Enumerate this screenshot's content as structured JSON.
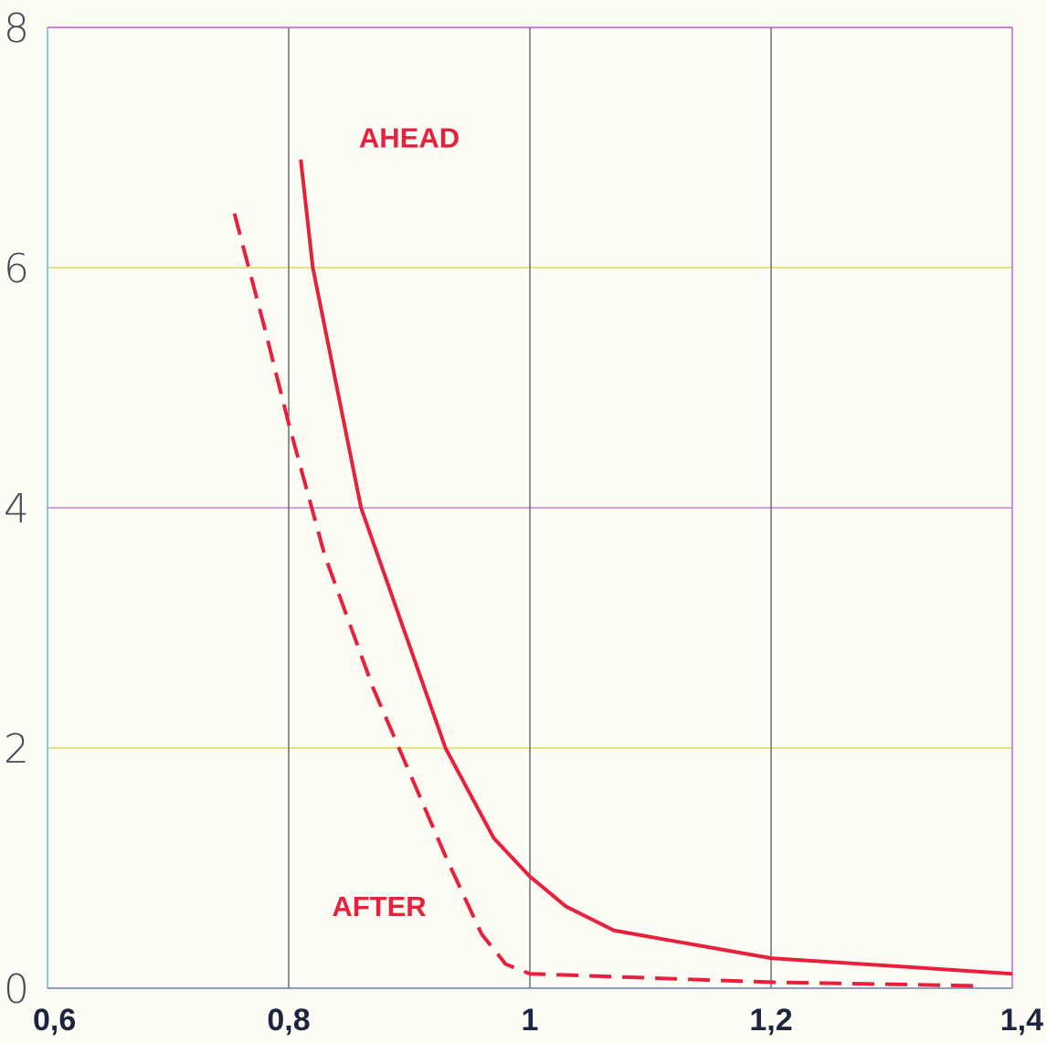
{
  "chart_data": {
    "type": "line",
    "title": "",
    "xlabel": "",
    "ylabel": "",
    "xlim": [
      0.6,
      1.4
    ],
    "ylim": [
      0,
      8
    ],
    "x_ticks": [
      "0,6",
      "0,8",
      "1",
      "1,2",
      "1,4"
    ],
    "y_ticks": [
      "0",
      "2",
      "4",
      "6",
      "8"
    ],
    "grid": true,
    "series": [
      {
        "name": "AHEAD",
        "style": "solid",
        "color": "#e8203b",
        "points": [
          [
            0.81,
            6.9
          ],
          [
            0.82,
            6.0
          ],
          [
            0.86,
            4.0
          ],
          [
            0.93,
            2.0
          ],
          [
            0.97,
            1.25
          ],
          [
            1.0,
            0.93
          ],
          [
            1.03,
            0.68
          ],
          [
            1.07,
            0.48
          ],
          [
            1.2,
            0.25
          ],
          [
            1.4,
            0.12
          ]
        ]
      },
      {
        "name": "AFTER",
        "style": "dashed",
        "color": "#e8203b",
        "points": [
          [
            0.755,
            6.45
          ],
          [
            0.78,
            5.5
          ],
          [
            0.8,
            4.7
          ],
          [
            0.83,
            3.6
          ],
          [
            0.87,
            2.5
          ],
          [
            0.9,
            1.8
          ],
          [
            0.93,
            1.1
          ],
          [
            0.96,
            0.45
          ],
          [
            0.98,
            0.2
          ],
          [
            1.0,
            0.12
          ],
          [
            1.2,
            0.05
          ],
          [
            1.37,
            0.02
          ]
        ]
      }
    ],
    "annotations": [
      {
        "text": "AHEAD",
        "x": 0.9,
        "y": 7.0
      },
      {
        "text": "AFTER",
        "x": 0.875,
        "y": 0.6
      }
    ]
  },
  "colors": {
    "background": "#fdfdf6",
    "line": "#e8203b",
    "grid_vertical": "#555566",
    "grid_horizontal": [
      "#c44fd0",
      "#d7d23a",
      "#b36cd8",
      "#d7d23a",
      "#4fb8d8"
    ]
  }
}
